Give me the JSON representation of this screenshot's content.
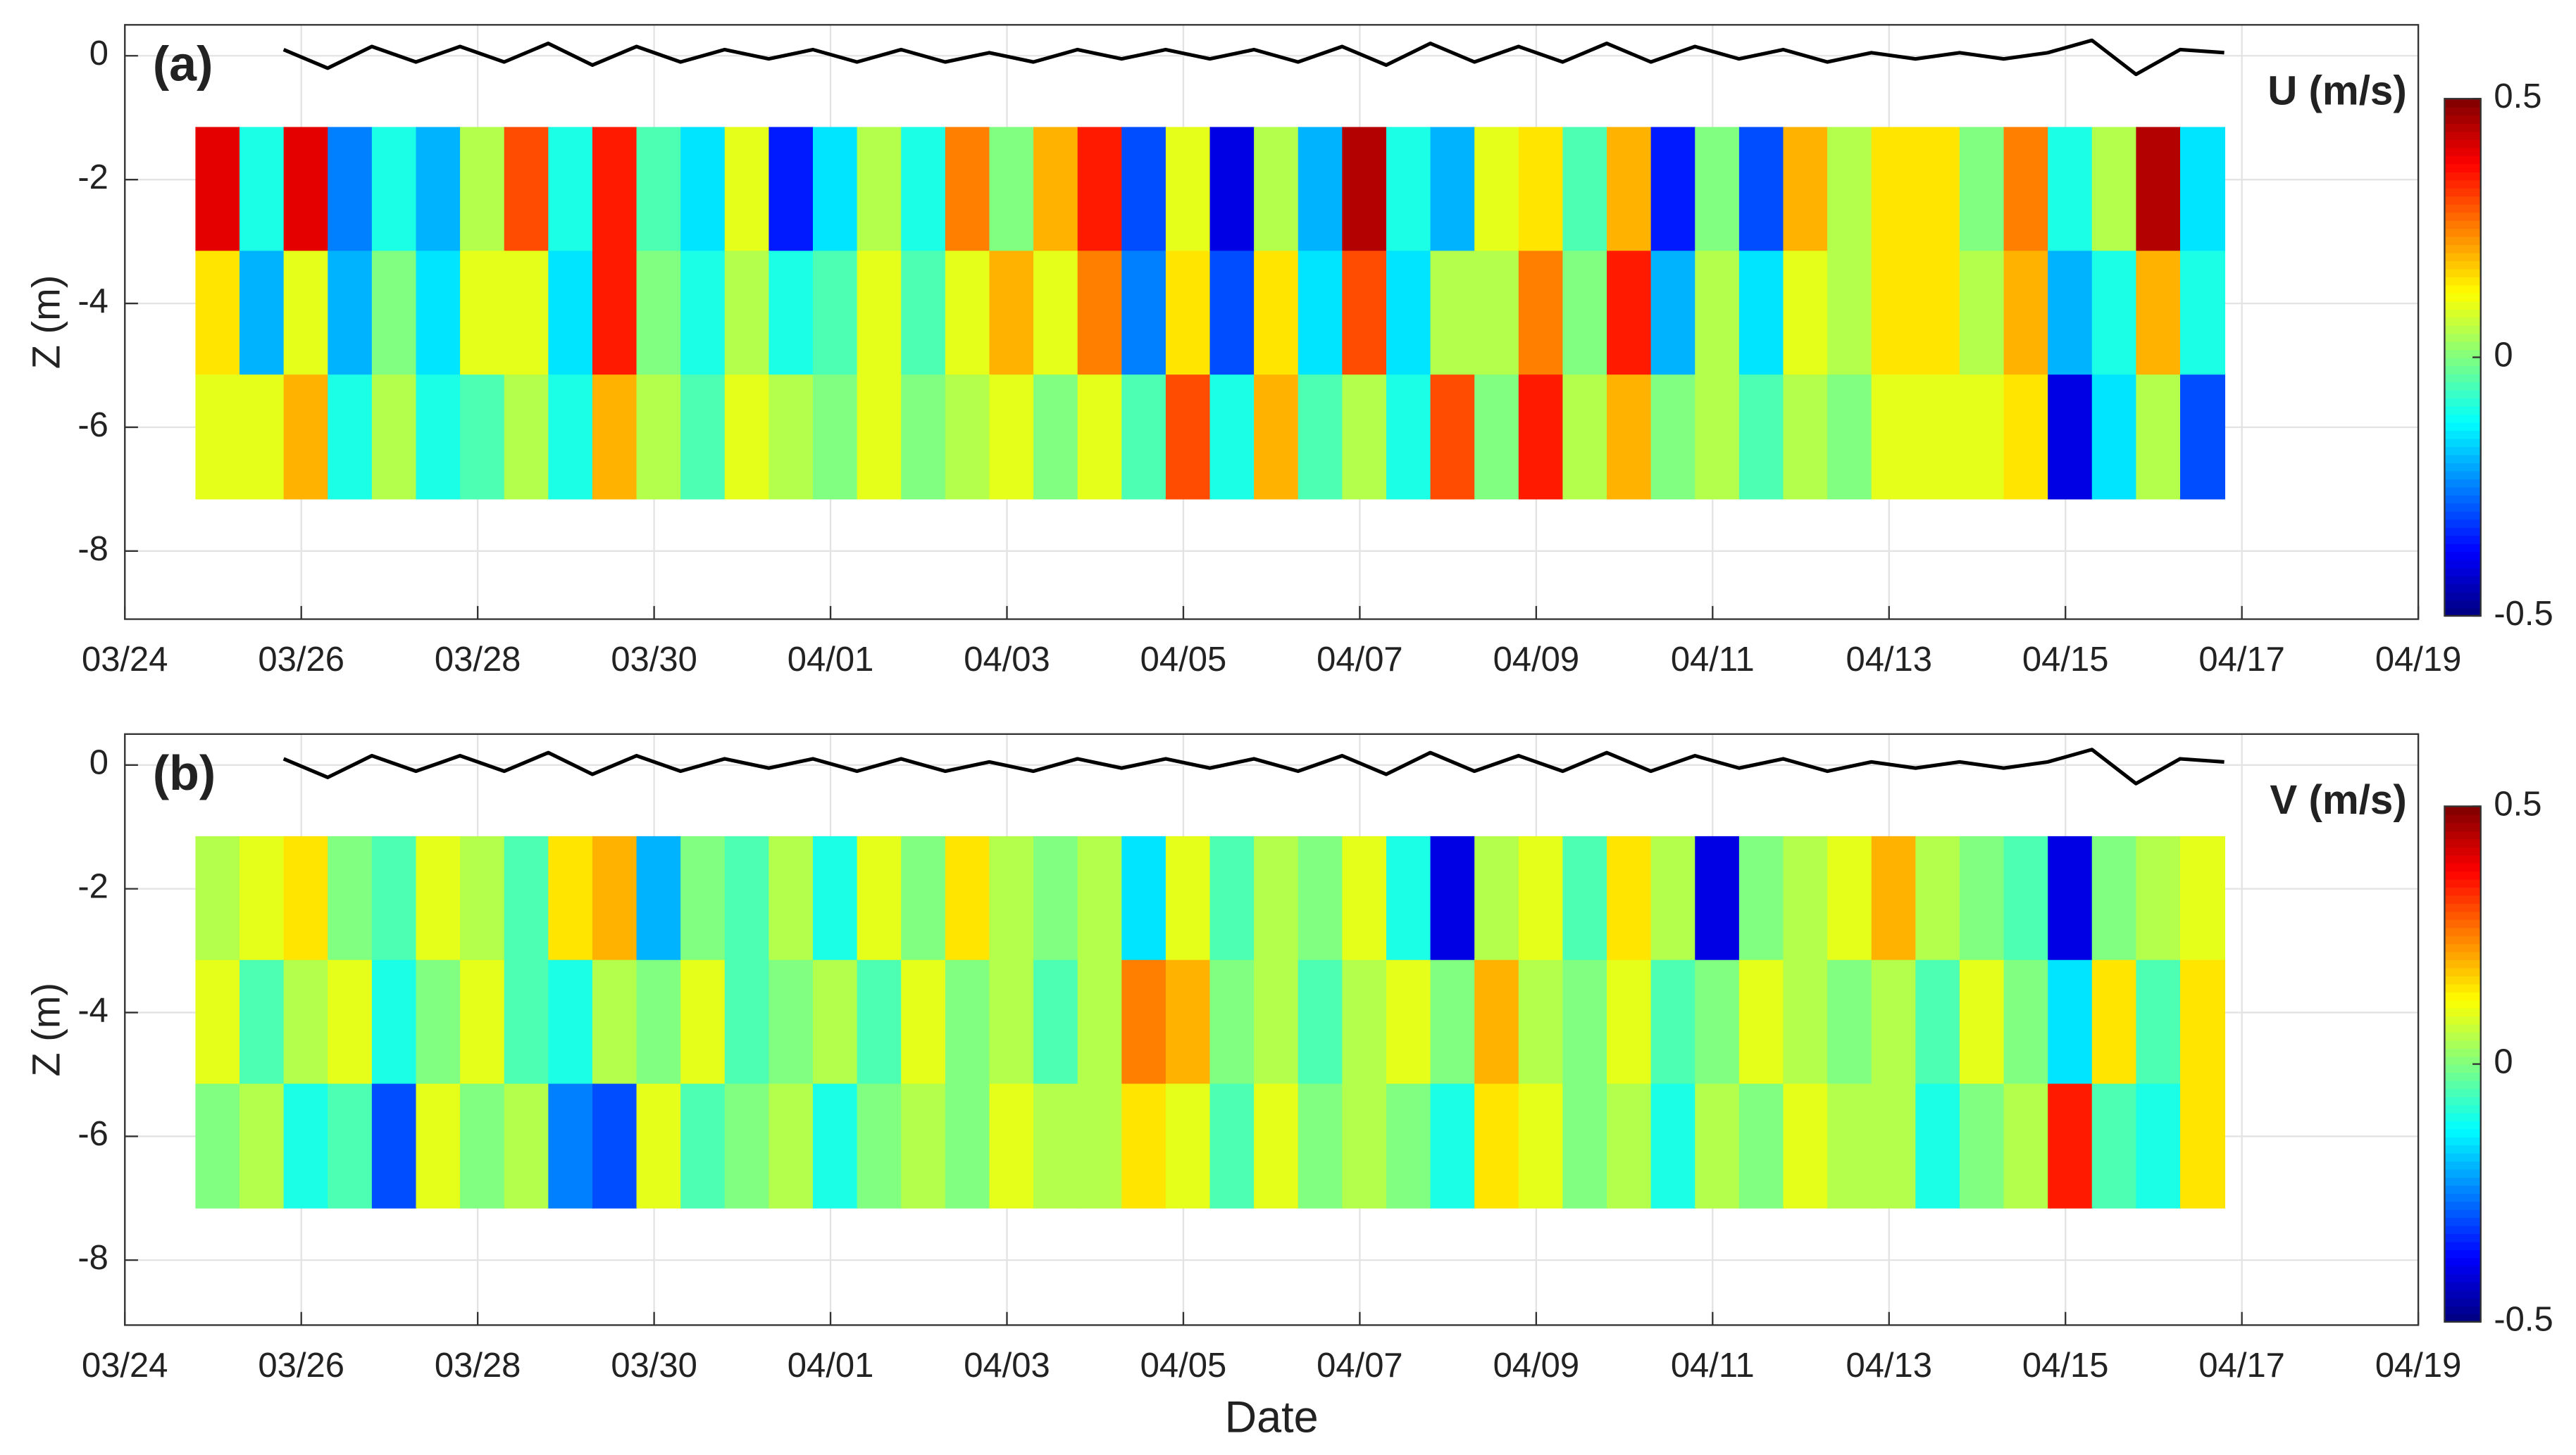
{
  "chart_data": [
    {
      "type": "heatmap",
      "panel_label": "(a)",
      "colorbar_label": "U (m/s)",
      "ylabel": "Z (m)",
      "xlim": [
        0,
        26
      ],
      "xticks": [
        {
          "value": 0,
          "label": "03/24"
        },
        {
          "value": 2,
          "label": "03/26"
        },
        {
          "value": 4,
          "label": "03/28"
        },
        {
          "value": 6,
          "label": "03/30"
        },
        {
          "value": 8,
          "label": "04/01"
        },
        {
          "value": 10,
          "label": "04/03"
        },
        {
          "value": 12,
          "label": "04/05"
        },
        {
          "value": 14,
          "label": "04/07"
        },
        {
          "value": 16,
          "label": "04/09"
        },
        {
          "value": 18,
          "label": "04/11"
        },
        {
          "value": 20,
          "label": "04/13"
        },
        {
          "value": 22,
          "label": "04/15"
        },
        {
          "value": 24,
          "label": "04/17"
        },
        {
          "value": 26,
          "label": "04/19"
        }
      ],
      "ylim": [
        -9.1,
        0.5
      ],
      "yticks": [
        0,
        -2,
        -4,
        -6,
        -8
      ],
      "grid": true,
      "colormap": "jet",
      "clim": [
        -0.5,
        0.5
      ],
      "cticks": [
        0.5,
        0,
        -0.5
      ],
      "x_edges": [
        0.8,
        1.3,
        1.8,
        2.3,
        2.8,
        3.3,
        3.8,
        4.3,
        4.8,
        5.3,
        5.8,
        6.3,
        6.8,
        7.3,
        7.8,
        8.3,
        8.8,
        9.3,
        9.8,
        10.3,
        10.8,
        11.3,
        11.8,
        12.3,
        12.8,
        13.3,
        13.8,
        14.3,
        14.8,
        15.3,
        15.8,
        16.3,
        16.8,
        17.3,
        17.8,
        18.3,
        18.8,
        19.3,
        19.8,
        20.3,
        20.8,
        21.3,
        21.8,
        22.3,
        22.8,
        23.3,
        23.8
      ],
      "y_edges": [
        -1.15,
        -3.15,
        -5.15,
        -7.15
      ],
      "z": [
        [
          0.4,
          -0.1,
          0.4,
          -0.25,
          -0.1,
          -0.2,
          0.05,
          0.3,
          -0.1,
          0.35,
          -0.05,
          -0.15,
          0.1,
          -0.35,
          -0.15,
          0.05,
          -0.1,
          0.25,
          0,
          0.2,
          0.35,
          -0.3,
          0.1,
          -0.4,
          0.05,
          -0.2,
          0.45,
          -0.1,
          -0.2,
          0.1,
          0.15,
          -0.05,
          0.2,
          -0.35,
          0,
          -0.3,
          0.2,
          0.05,
          0.15,
          0.15,
          0,
          0.25,
          -0.1,
          0.05,
          0.45,
          -0.15
        ],
        [
          0.15,
          -0.2,
          0.1,
          -0.2,
          0,
          -0.15,
          0.1,
          0.1,
          -0.15,
          0.35,
          0,
          -0.1,
          0.05,
          -0.1,
          -0.05,
          0.1,
          -0.05,
          0.1,
          0.2,
          0.1,
          0.25,
          -0.25,
          0.15,
          -0.3,
          0.15,
          -0.15,
          0.3,
          -0.15,
          0.05,
          0.05,
          0.25,
          0,
          0.35,
          -0.2,
          0.05,
          -0.15,
          0.1,
          0.05,
          0.15,
          0.15,
          0.05,
          0.2,
          -0.2,
          -0.1,
          0.2,
          -0.1
        ],
        [
          0.1,
          0.1,
          0.2,
          -0.1,
          0.05,
          -0.1,
          -0.05,
          0.05,
          -0.1,
          0.2,
          0.05,
          -0.05,
          0.1,
          0.05,
          0,
          0.1,
          0,
          0.05,
          0.1,
          0,
          0.1,
          -0.05,
          0.3,
          -0.1,
          0.2,
          -0.05,
          0.05,
          -0.1,
          0.3,
          0,
          0.35,
          0.05,
          0.2,
          0,
          0.05,
          -0.05,
          0.05,
          0,
          0.1,
          0.1,
          0.1,
          0.15,
          -0.4,
          -0.15,
          0.05,
          -0.3
        ]
      ],
      "line": {
        "color": "#000000",
        "x": [
          1.8,
          2.3,
          2.8,
          3.3,
          3.8,
          4.3,
          4.8,
          5.3,
          5.8,
          6.3,
          6.8,
          7.3,
          7.8,
          8.3,
          8.8,
          9.3,
          9.8,
          10.3,
          10.8,
          11.3,
          11.8,
          12.3,
          12.8,
          13.3,
          13.8,
          14.3,
          14.8,
          15.3,
          15.8,
          16.3,
          16.8,
          17.3,
          17.8,
          18.3,
          18.8,
          19.3,
          19.8,
          20.3,
          20.8,
          21.3,
          21.8,
          22.3,
          22.8,
          23.3,
          23.8
        ],
        "values": [
          0.1,
          -0.2,
          0.15,
          -0.1,
          0.15,
          -0.1,
          0.2,
          -0.15,
          0.15,
          -0.1,
          0.1,
          -0.05,
          0.1,
          -0.1,
          0.1,
          -0.1,
          0.05,
          -0.1,
          0.1,
          -0.05,
          0.1,
          -0.05,
          0.1,
          -0.1,
          0.15,
          -0.15,
          0.2,
          -0.1,
          0.15,
          -0.1,
          0.2,
          -0.1,
          0.15,
          -0.05,
          0.1,
          -0.1,
          0.05,
          -0.05,
          0.05,
          -0.05,
          0.05,
          0.25,
          -0.3,
          0.1,
          0.05
        ]
      }
    },
    {
      "type": "heatmap",
      "panel_label": "(b)",
      "colorbar_label": "V (m/s)",
      "ylabel": "Z (m)",
      "xlabel": "Date",
      "xlim": [
        0,
        26
      ],
      "xticks": [
        {
          "value": 0,
          "label": "03/24"
        },
        {
          "value": 2,
          "label": "03/26"
        },
        {
          "value": 4,
          "label": "03/28"
        },
        {
          "value": 6,
          "label": "03/30"
        },
        {
          "value": 8,
          "label": "04/01"
        },
        {
          "value": 10,
          "label": "04/03"
        },
        {
          "value": 12,
          "label": "04/05"
        },
        {
          "value": 14,
          "label": "04/07"
        },
        {
          "value": 16,
          "label": "04/09"
        },
        {
          "value": 18,
          "label": "04/11"
        },
        {
          "value": 20,
          "label": "04/13"
        },
        {
          "value": 22,
          "label": "04/15"
        },
        {
          "value": 24,
          "label": "04/17"
        },
        {
          "value": 26,
          "label": "04/19"
        }
      ],
      "ylim": [
        -9.05,
        0.5
      ],
      "yticks": [
        0,
        -2,
        -4,
        -6,
        -8
      ],
      "grid": true,
      "colormap": "jet",
      "clim": [
        -0.5,
        0.5
      ],
      "cticks": [
        0.5,
        0,
        -0.5
      ],
      "x_edges": [
        0.8,
        1.3,
        1.8,
        2.3,
        2.8,
        3.3,
        3.8,
        4.3,
        4.8,
        5.3,
        5.8,
        6.3,
        6.8,
        7.3,
        7.8,
        8.3,
        8.8,
        9.3,
        9.8,
        10.3,
        10.8,
        11.3,
        11.8,
        12.3,
        12.8,
        13.3,
        13.8,
        14.3,
        14.8,
        15.3,
        15.8,
        16.3,
        16.8,
        17.3,
        17.8,
        18.3,
        18.8,
        19.3,
        19.8,
        20.3,
        20.8,
        21.3,
        21.8,
        22.3,
        22.8,
        23.3,
        23.8
      ],
      "y_edges": [
        -1.15,
        -3.15,
        -5.15,
        -7.15
      ],
      "z": [
        [
          0.05,
          0.1,
          0.15,
          0,
          -0.05,
          0.1,
          0.05,
          -0.05,
          0.15,
          0.2,
          -0.2,
          0,
          -0.05,
          0.05,
          -0.1,
          0.1,
          0,
          0.15,
          0.05,
          0,
          0.05,
          -0.15,
          0.1,
          -0.05,
          0.05,
          0,
          0.1,
          -0.1,
          -0.4,
          0.05,
          0.1,
          -0.05,
          0.15,
          0.05,
          -0.4,
          0,
          0.05,
          0.1,
          0.2,
          0.05,
          0,
          -0.05,
          -0.4,
          0,
          0.05,
          0.1
        ],
        [
          0.1,
          -0.05,
          0.05,
          0.1,
          -0.1,
          0,
          0.1,
          -0.05,
          -0.1,
          0.05,
          0,
          0.1,
          -0.05,
          0,
          0.05,
          -0.05,
          0.1,
          0,
          0.05,
          -0.05,
          0.05,
          0.25,
          0.2,
          0,
          0.05,
          -0.05,
          0.05,
          0.1,
          0,
          0.2,
          0.05,
          0,
          0.1,
          -0.05,
          0,
          0.1,
          0.05,
          0,
          0.05,
          -0.05,
          0.1,
          0,
          -0.15,
          0.15,
          -0.05,
          0.15
        ],
        [
          0,
          0.05,
          -0.1,
          -0.05,
          -0.3,
          0.1,
          0,
          0.05,
          -0.25,
          -0.3,
          0.1,
          -0.05,
          0,
          0.05,
          -0.1,
          0,
          0.05,
          0,
          0.1,
          0.05,
          0.05,
          0.15,
          0.1,
          -0.05,
          0.1,
          0,
          0.05,
          0,
          -0.1,
          0.15,
          0.1,
          0,
          0.05,
          -0.1,
          0.05,
          0,
          0.1,
          0.05,
          0.05,
          -0.1,
          0,
          0.05,
          0.35,
          -0.05,
          -0.1,
          0.15
        ]
      ],
      "line": {
        "color": "#000000",
        "x": [
          1.8,
          2.3,
          2.8,
          3.3,
          3.8,
          4.3,
          4.8,
          5.3,
          5.8,
          6.3,
          6.8,
          7.3,
          7.8,
          8.3,
          8.8,
          9.3,
          9.8,
          10.3,
          10.8,
          11.3,
          11.8,
          12.3,
          12.8,
          13.3,
          13.8,
          14.3,
          14.8,
          15.3,
          15.8,
          16.3,
          16.8,
          17.3,
          17.8,
          18.3,
          18.8,
          19.3,
          19.8,
          20.3,
          20.8,
          21.3,
          21.8,
          22.3,
          22.8,
          23.3,
          23.8
        ],
        "values": [
          0.1,
          -0.2,
          0.15,
          -0.1,
          0.15,
          -0.1,
          0.2,
          -0.15,
          0.15,
          -0.1,
          0.1,
          -0.05,
          0.1,
          -0.1,
          0.1,
          -0.1,
          0.05,
          -0.1,
          0.1,
          -0.05,
          0.1,
          -0.05,
          0.1,
          -0.1,
          0.15,
          -0.15,
          0.2,
          -0.1,
          0.15,
          -0.1,
          0.2,
          -0.1,
          0.15,
          -0.05,
          0.1,
          -0.1,
          0.05,
          -0.05,
          0.05,
          -0.05,
          0.05,
          0.25,
          -0.3,
          0.1,
          0.05
        ]
      }
    }
  ]
}
